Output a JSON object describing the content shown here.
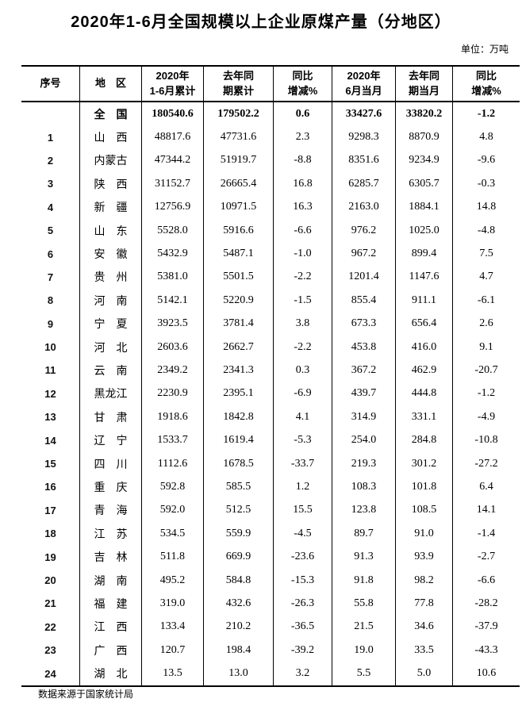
{
  "title": "2020年1-6月全国规模以上企业原煤产量（分地区）",
  "unit_label": "单位：万吨",
  "footer_note": "数据来源于国家统计局",
  "table": {
    "headers": [
      "序号",
      "地　区",
      "2020年\n1-6月累计",
      "去年同\n期累计",
      "同比\n增减%",
      "2020年\n6月当月",
      "去年同\n期当月",
      "同比\n增减%"
    ],
    "rows": [
      {
        "seq": "",
        "region": "全　国",
        "values": [
          "180540.6",
          "179502.2",
          "0.6",
          "33427.6",
          "33820.2",
          "-1.2"
        ],
        "bold": true
      },
      {
        "seq": "1",
        "region": "山　西",
        "values": [
          "48817.6",
          "47731.6",
          "2.3",
          "9298.3",
          "8870.9",
          "4.8"
        ],
        "bold": false
      },
      {
        "seq": "2",
        "region": "内蒙古",
        "values": [
          "47344.2",
          "51919.7",
          "-8.8",
          "8351.6",
          "9234.9",
          "-9.6"
        ],
        "bold": false
      },
      {
        "seq": "3",
        "region": "陕　西",
        "values": [
          "31152.7",
          "26665.4",
          "16.8",
          "6285.7",
          "6305.7",
          "-0.3"
        ],
        "bold": false
      },
      {
        "seq": "4",
        "region": "新　疆",
        "values": [
          "12756.9",
          "10971.5",
          "16.3",
          "2163.0",
          "1884.1",
          "14.8"
        ],
        "bold": false
      },
      {
        "seq": "5",
        "region": "山　东",
        "values": [
          "5528.0",
          "5916.6",
          "-6.6",
          "976.2",
          "1025.0",
          "-4.8"
        ],
        "bold": false
      },
      {
        "seq": "6",
        "region": "安　徽",
        "values": [
          "5432.9",
          "5487.1",
          "-1.0",
          "967.2",
          "899.4",
          "7.5"
        ],
        "bold": false
      },
      {
        "seq": "7",
        "region": "贵　州",
        "values": [
          "5381.0",
          "5501.5",
          "-2.2",
          "1201.4",
          "1147.6",
          "4.7"
        ],
        "bold": false
      },
      {
        "seq": "8",
        "region": "河　南",
        "values": [
          "5142.1",
          "5220.9",
          "-1.5",
          "855.4",
          "911.1",
          "-6.1"
        ],
        "bold": false
      },
      {
        "seq": "9",
        "region": "宁　夏",
        "values": [
          "3923.5",
          "3781.4",
          "3.8",
          "673.3",
          "656.4",
          "2.6"
        ],
        "bold": false
      },
      {
        "seq": "10",
        "region": "河　北",
        "values": [
          "2603.6",
          "2662.7",
          "-2.2",
          "453.8",
          "416.0",
          "9.1"
        ],
        "bold": false
      },
      {
        "seq": "11",
        "region": "云　南",
        "values": [
          "2349.2",
          "2341.3",
          "0.3",
          "367.2",
          "462.9",
          "-20.7"
        ],
        "bold": false
      },
      {
        "seq": "12",
        "region": "黑龙江",
        "values": [
          "2230.9",
          "2395.1",
          "-6.9",
          "439.7",
          "444.8",
          "-1.2"
        ],
        "bold": false
      },
      {
        "seq": "13",
        "region": "甘　肃",
        "values": [
          "1918.6",
          "1842.8",
          "4.1",
          "314.9",
          "331.1",
          "-4.9"
        ],
        "bold": false
      },
      {
        "seq": "14",
        "region": "辽　宁",
        "values": [
          "1533.7",
          "1619.4",
          "-5.3",
          "254.0",
          "284.8",
          "-10.8"
        ],
        "bold": false
      },
      {
        "seq": "15",
        "region": "四　川",
        "values": [
          "1112.6",
          "1678.5",
          "-33.7",
          "219.3",
          "301.2",
          "-27.2"
        ],
        "bold": false
      },
      {
        "seq": "16",
        "region": "重　庆",
        "values": [
          "592.8",
          "585.5",
          "1.2",
          "108.3",
          "101.8",
          "6.4"
        ],
        "bold": false
      },
      {
        "seq": "17",
        "region": "青　海",
        "values": [
          "592.0",
          "512.5",
          "15.5",
          "123.8",
          "108.5",
          "14.1"
        ],
        "bold": false
      },
      {
        "seq": "18",
        "region": "江　苏",
        "values": [
          "534.5",
          "559.9",
          "-4.5",
          "89.7",
          "91.0",
          "-1.4"
        ],
        "bold": false
      },
      {
        "seq": "19",
        "region": "吉　林",
        "values": [
          "511.8",
          "669.9",
          "-23.6",
          "91.3",
          "93.9",
          "-2.7"
        ],
        "bold": false
      },
      {
        "seq": "20",
        "region": "湖　南",
        "values": [
          "495.2",
          "584.8",
          "-15.3",
          "91.8",
          "98.2",
          "-6.6"
        ],
        "bold": false
      },
      {
        "seq": "21",
        "region": "福　建",
        "values": [
          "319.0",
          "432.6",
          "-26.3",
          "55.8",
          "77.8",
          "-28.2"
        ],
        "bold": false
      },
      {
        "seq": "22",
        "region": "江　西",
        "values": [
          "133.4",
          "210.2",
          "-36.5",
          "21.5",
          "34.6",
          "-37.9"
        ],
        "bold": false
      },
      {
        "seq": "23",
        "region": "广　西",
        "values": [
          "120.7",
          "198.4",
          "-39.2",
          "19.0",
          "33.5",
          "-43.3"
        ],
        "bold": false
      },
      {
        "seq": "24",
        "region": "湖　北",
        "values": [
          "13.5",
          "13.0",
          "3.2",
          "5.5",
          "5.0",
          "10.6"
        ],
        "bold": false
      }
    ]
  }
}
